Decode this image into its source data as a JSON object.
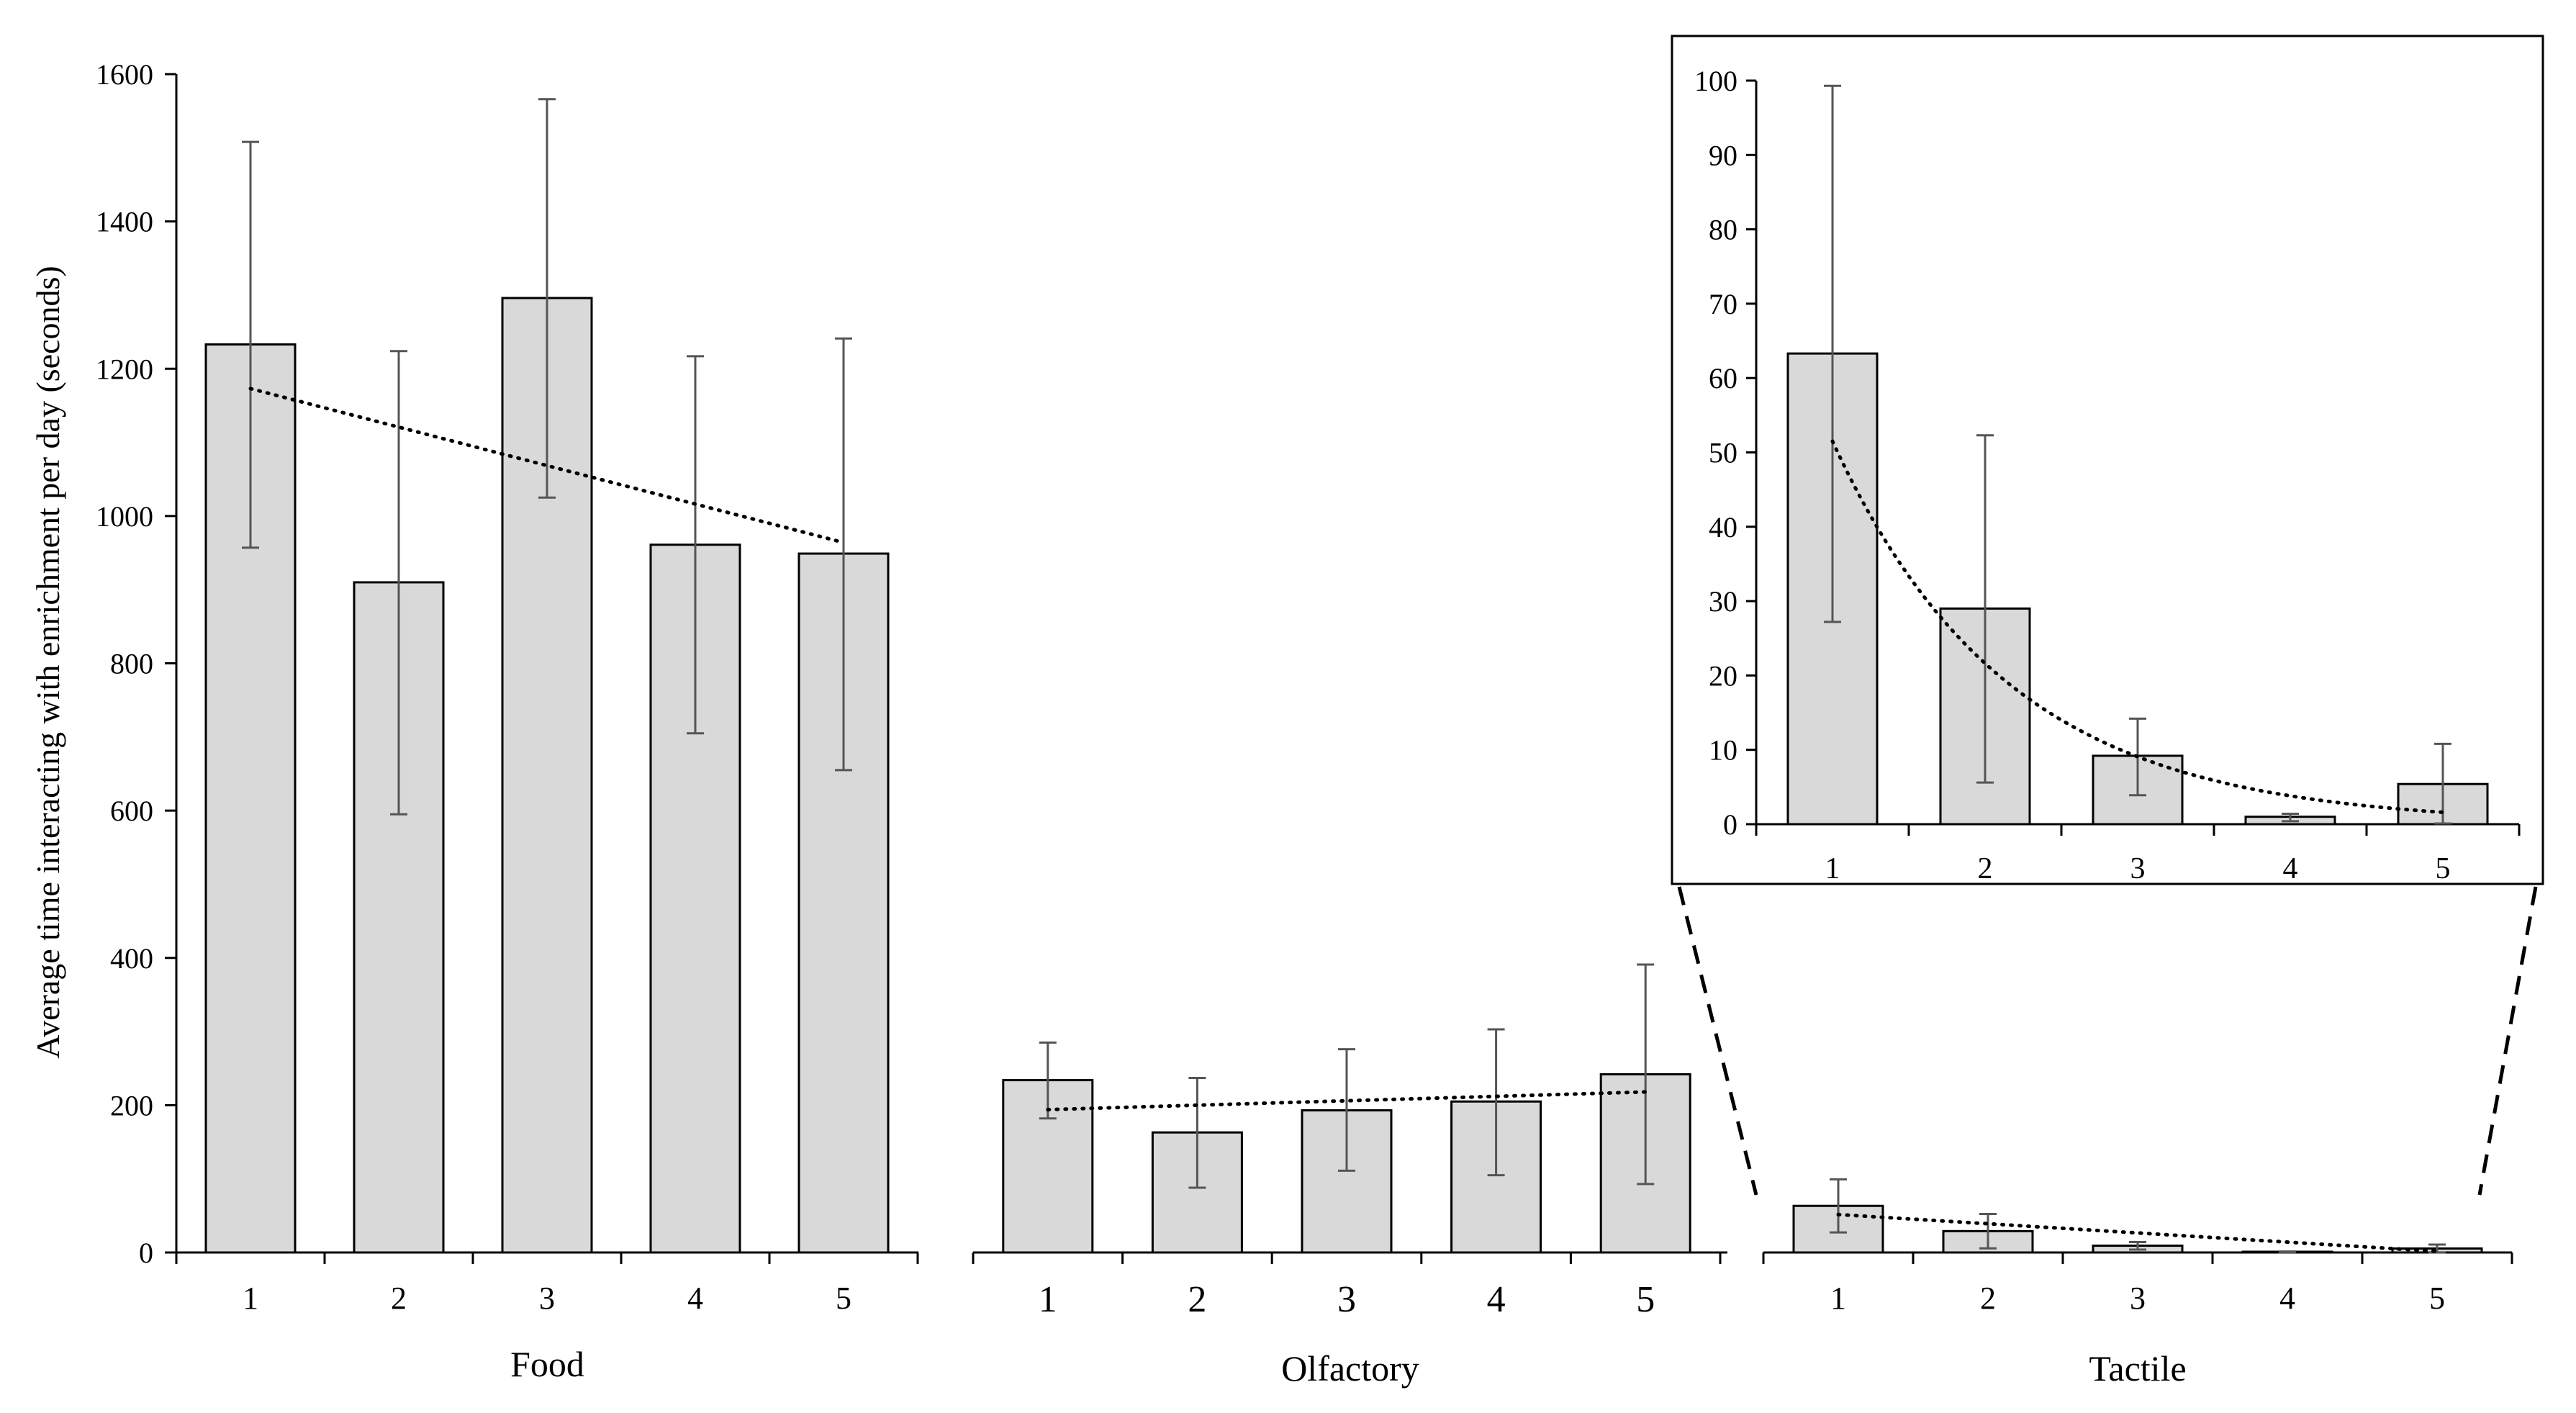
{
  "chart_data": {
    "type": "bar",
    "ylabel": "Average time interacting with enrichment per day (seconds)",
    "ylim": [
      0,
      1600
    ],
    "yticks": [
      0,
      200,
      400,
      600,
      800,
      1000,
      1200,
      1400,
      1600
    ],
    "bar_fill": "#d9d9d9",
    "bar_stroke": "#000000",
    "error_color": "#555555",
    "panels": [
      {
        "name": "Food",
        "categories": [
          "1",
          "2",
          "3",
          "4",
          "5"
        ],
        "values": [
          1233,
          910,
          1296,
          961,
          949
        ],
        "error_low": [
          957,
          595,
          1025,
          705,
          655
        ],
        "error_high": [
          1508,
          1224,
          1566,
          1217,
          1241
        ],
        "trend": [
          1173,
          1120,
          1068,
          1016,
          964
        ]
      },
      {
        "name": "Olfactory",
        "categories": [
          "1",
          "2",
          "3",
          "4",
          "5"
        ],
        "values": [
          234,
          163,
          193,
          205,
          242
        ],
        "error_low": [
          182,
          88,
          111,
          105,
          93
        ],
        "error_high": [
          285,
          237,
          276,
          303,
          391
        ],
        "trend": [
          194,
          200,
          206,
          212,
          218
        ]
      },
      {
        "name": "Tactile",
        "categories": [
          "1",
          "2",
          "3",
          "4",
          "5"
        ],
        "values": [
          63.3,
          29,
          9.2,
          1.0,
          5.4
        ],
        "error_low": [
          27.2,
          5.6,
          3.9,
          0.4,
          0.1
        ],
        "error_high": [
          99.3,
          52.3,
          14.2,
          1.4,
          10.8
        ],
        "trend": [
          51.5,
          21.9,
          9.2,
          3.9,
          1.6
        ]
      }
    ],
    "inset": {
      "panel": "Tactile",
      "ylim": [
        0,
        100
      ],
      "yticks": [
        0,
        10,
        20,
        30,
        40,
        50,
        60,
        70,
        80,
        90,
        100
      ]
    }
  }
}
